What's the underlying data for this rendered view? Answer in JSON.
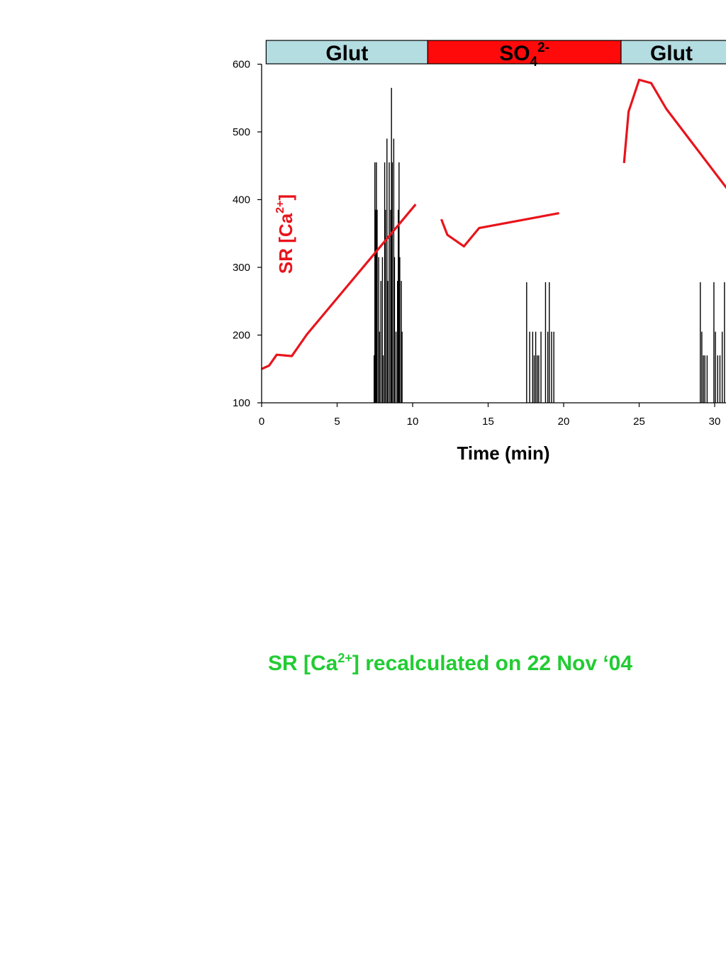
{
  "chart_data": {
    "type": "line",
    "xlabel": "Time (min)",
    "ylabel": {
      "prefix": "SR [Ca",
      "sup": "2+",
      "suffix": "]"
    },
    "xlim": [
      0,
      31
    ],
    "ylim": [
      100,
      600
    ],
    "x_ticks": [
      "0",
      "5",
      "10",
      "15",
      "20",
      "25",
      "30"
    ],
    "y_ticks": [
      "100",
      "200",
      "300",
      "400",
      "500",
      "600"
    ],
    "grid": false,
    "colors": {
      "series": "#e8141c",
      "glut": "#b4dde1",
      "so4": "#ff0a0a",
      "spikes": "#000000"
    },
    "condition_bands": [
      {
        "label": "Glut",
        "start": 0.3,
        "end": 11.0,
        "color": "glut"
      },
      {
        "label": "SO",
        "sub": "4",
        "sup": "2-",
        "start": 11.0,
        "end": 23.8,
        "color": "so4"
      },
      {
        "label": "Glut",
        "start": 23.8,
        "end": 31,
        "color": "glut"
      }
    ],
    "series": [
      {
        "color": "#e8141c",
        "segments": [
          [
            [
              0,
              150
            ],
            [
              0.5,
              155
            ],
            [
              1,
              171
            ],
            [
              2,
              169
            ],
            [
              3,
              201
            ],
            [
              10.2,
              393
            ]
          ],
          [
            [
              11.9,
              371
            ],
            [
              12.3,
              348
            ],
            [
              13.4,
              331
            ],
            [
              14.4,
              358
            ],
            [
              19.7,
              380
            ]
          ],
          [
            [
              24.0,
              454
            ],
            [
              24.3,
              530
            ],
            [
              25.0,
              577
            ],
            [
              25.8,
              572
            ],
            [
              26.8,
              534
            ],
            [
              31,
              411
            ]
          ]
        ]
      }
    ],
    "events": [
      {
        "label": "spike bursts",
        "times": [
          7.45,
          7.5,
          7.55,
          7.6,
          7.65,
          7.75,
          7.8,
          7.9,
          8.0,
          8.05,
          8.15,
          8.2,
          8.3,
          8.35,
          8.45,
          8.55,
          8.6,
          8.65,
          8.75,
          8.8,
          8.9,
          9.0,
          9.05,
          9.1,
          9.15,
          9.25,
          9.3,
          17.55,
          17.75,
          17.95,
          18.05,
          18.15,
          18.25,
          18.35,
          18.5,
          18.8,
          18.95,
          19.05,
          19.2,
          19.35,
          29.05,
          29.15,
          29.25,
          29.35,
          29.5,
          29.95,
          30.05,
          30.2,
          30.35,
          30.5,
          30.65,
          30.8,
          30.95
        ],
        "heights": [
          170,
          455,
          385,
          455,
          385,
          315,
          205,
          280,
          315,
          170,
          455,
          385,
          490,
          280,
          455,
          385,
          565,
          455,
          490,
          315,
          205,
          280,
          385,
          455,
          315,
          280,
          205,
          278,
          205,
          205,
          170,
          205,
          170,
          170,
          205,
          278,
          205,
          278,
          205,
          205,
          278,
          205,
          170,
          170,
          170,
          278,
          205,
          170,
          170,
          205,
          278,
          205,
          170
        ]
      }
    ]
  },
  "caption": {
    "prefix": "SR [Ca",
    "sup": "2+",
    "suffix": "] recalculated on 22 Nov ‘04"
  }
}
